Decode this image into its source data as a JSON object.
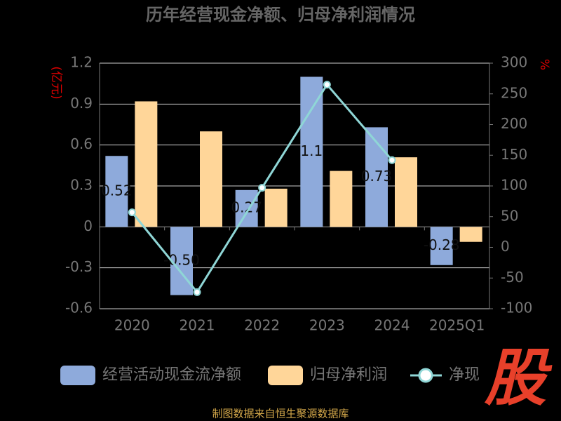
{
  "chart_data": {
    "type": "bar-line",
    "title": "历年经营现金净额、归母净利润情况",
    "y_label": "(亿元)",
    "y2_label": "%",
    "categories": [
      "2020",
      "2021",
      "2022",
      "2023",
      "2024",
      "2025Q1"
    ],
    "series": [
      {
        "name": "经营活动现金流净额",
        "color": "#8eaadb",
        "type": "bar",
        "values": [
          0.52,
          -0.5,
          0.27,
          1.1,
          0.73,
          -0.28
        ],
        "value_labels": [
          "0.52",
          "-0.50",
          "0.27",
          "1.1",
          "0.73",
          "-0.28"
        ]
      },
      {
        "name": "归母净利润",
        "color": "#ffd699",
        "type": "bar",
        "values": [
          0.92,
          0.7,
          0.28,
          0.41,
          0.51,
          -0.11
        ]
      },
      {
        "name": "净现",
        "color": "#8fd6d6",
        "type": "line",
        "axis": "y2",
        "values": [
          57,
          -73,
          97,
          265,
          142,
          null
        ]
      }
    ],
    "ylim": [
      -0.6,
      1.2
    ],
    "yticks": [
      1.2,
      0.9,
      0.6,
      0.3,
      0,
      -0.3,
      -0.6
    ],
    "y2lim": [
      -100,
      300
    ],
    "y2ticks": [
      300,
      250,
      200,
      150,
      100,
      50,
      0,
      -50,
      -100
    ],
    "grid": true,
    "source": "制图数据来自恒生聚源数据库",
    "logo": "股"
  }
}
